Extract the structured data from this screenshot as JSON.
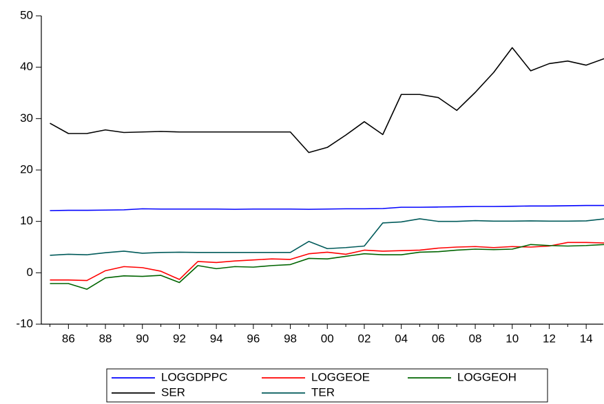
{
  "chart_data": {
    "type": "line",
    "categories": [
      null,
      "86",
      null,
      "88",
      null,
      "90",
      null,
      "92",
      null,
      "94",
      null,
      "96",
      null,
      "98",
      null,
      "00",
      null,
      "02",
      null,
      "04",
      null,
      "06",
      null,
      "08",
      null,
      "10",
      null,
      "12",
      null,
      "14",
      null
    ],
    "series": [
      {
        "name": "LOGGDPPC",
        "color": "#0000ff",
        "values": [
          12.1,
          12.15,
          12.15,
          12.2,
          12.25,
          12.45,
          12.4,
          12.4,
          12.4,
          12.4,
          12.35,
          12.4,
          12.4,
          12.4,
          12.35,
          12.4,
          12.45,
          12.45,
          12.5,
          12.75,
          12.75,
          12.8,
          12.85,
          12.9,
          12.9,
          12.95,
          13.0,
          13.0,
          13.05,
          13.1,
          13.1
        ]
      },
      {
        "name": "LOGGEOE",
        "color": "#ff0000",
        "values": [
          -1.4,
          -1.4,
          -1.5,
          0.4,
          1.2,
          1.0,
          0.3,
          -1.3,
          2.2,
          2.0,
          2.3,
          2.5,
          2.7,
          2.6,
          3.7,
          4.0,
          3.6,
          4.4,
          4.2,
          4.3,
          4.4,
          4.8,
          5.0,
          5.1,
          4.9,
          5.1,
          5.0,
          5.2,
          5.9,
          5.9,
          5.8
        ]
      },
      {
        "name": "LOGGEOH",
        "color": "#006400",
        "values": [
          -2.1,
          -2.1,
          -3.2,
          -1.0,
          -0.6,
          -0.7,
          -0.5,
          -1.9,
          1.4,
          0.8,
          1.2,
          1.1,
          1.4,
          1.6,
          2.8,
          2.7,
          3.2,
          3.7,
          3.5,
          3.5,
          4.0,
          4.1,
          4.4,
          4.6,
          4.5,
          4.6,
          5.5,
          5.3,
          5.2,
          5.3,
          5.5
        ]
      },
      {
        "name": "SER",
        "color": "#000000",
        "values": [
          29.1,
          27.1,
          27.1,
          27.8,
          27.3,
          27.4,
          27.5,
          27.4,
          27.4,
          27.4,
          27.4,
          27.4,
          27.4,
          27.4,
          23.4,
          24.4,
          26.8,
          29.4,
          26.9,
          34.7,
          34.7,
          34.1,
          31.6,
          35.1,
          39.0,
          43.8,
          39.3,
          40.7,
          41.2,
          40.4,
          41.7
        ]
      },
      {
        "name": "TER",
        "color": "#005a5a",
        "values": [
          3.4,
          3.6,
          3.5,
          3.9,
          4.2,
          3.8,
          3.95,
          4.0,
          3.95,
          3.95,
          3.95,
          3.95,
          3.95,
          3.95,
          6.1,
          4.7,
          4.9,
          5.2,
          9.7,
          9.9,
          10.5,
          10.0,
          10.0,
          10.15,
          10.05,
          10.05,
          10.1,
          10.05,
          10.05,
          10.1,
          10.5
        ]
      }
    ],
    "ylim": [
      -10,
      50
    ],
    "yticks": [
      -10,
      0,
      10,
      20,
      30,
      40,
      50
    ],
    "grid": false
  }
}
